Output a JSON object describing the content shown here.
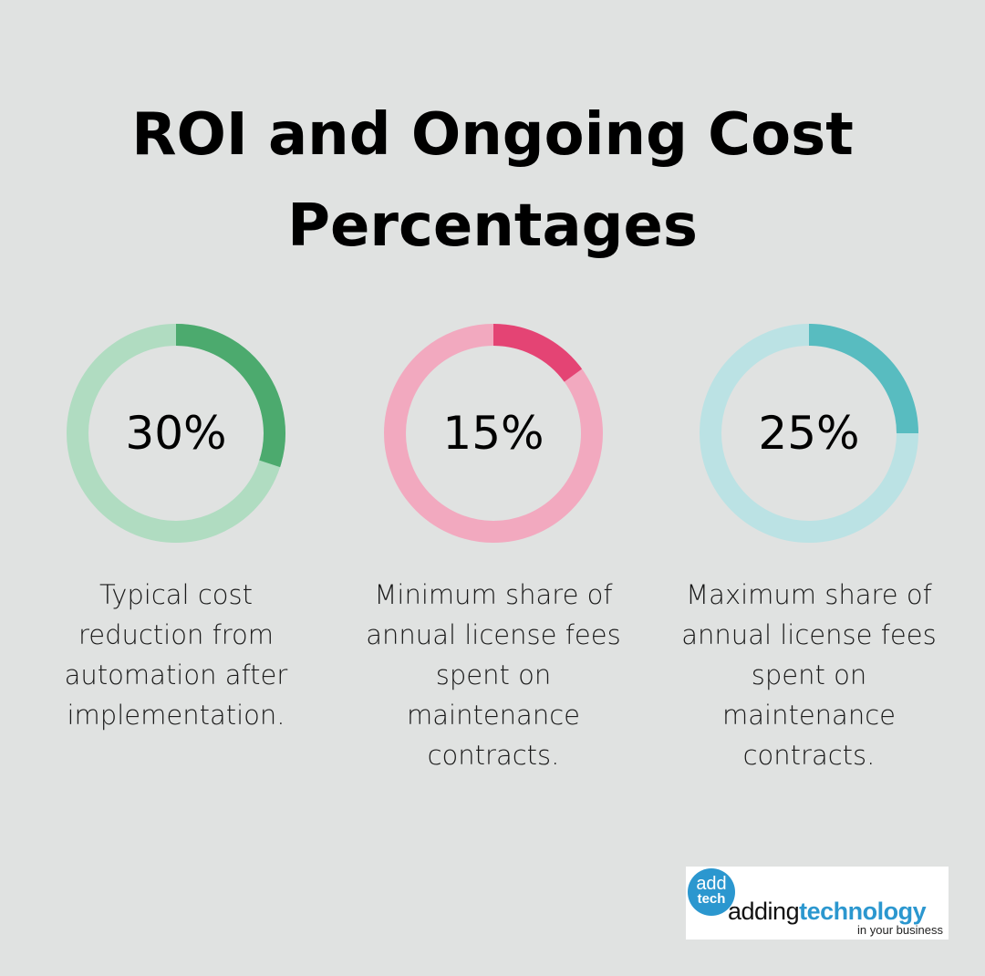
{
  "title": "ROI and Ongoing Cost Percentages",
  "chart_data": [
    {
      "type": "pie",
      "variant": "donut",
      "value": 30,
      "label": "30%",
      "description": "Typical cost reduction from automation after implementation.",
      "color": "#4caa6e",
      "track_color": "#b0dcc1"
    },
    {
      "type": "pie",
      "variant": "donut",
      "value": 15,
      "label": "15%",
      "description": "Minimum share of annual license fees spent on maintenance contracts.",
      "color": "#e44474",
      "track_color": "#f2a9bf"
    },
    {
      "type": "pie",
      "variant": "donut",
      "value": 25,
      "label": "25%",
      "description": "Maximum share of annual license fees spent on maintenance contracts.",
      "color": "#58bcc0",
      "track_color": "#bbe2e4"
    }
  ],
  "logo": {
    "circle_top": "add",
    "circle_bottom": "tech",
    "brand_part1": "adding",
    "brand_part2": "technology",
    "tagline": "in your business"
  }
}
